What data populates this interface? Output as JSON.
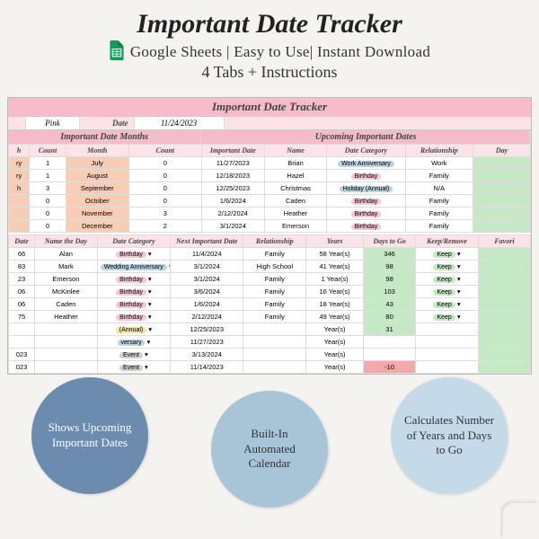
{
  "header": {
    "title": "Important Date Tracker",
    "subtitle1": "Google Sheets | Easy to Use| Instant Download",
    "subtitle2": "4 Tabs + Instructions"
  },
  "sheet": {
    "title": "Important Date Tracker",
    "theme_label": "Pink",
    "date_label": "Date",
    "date_value": "11/24/2023"
  },
  "section1": {
    "title": "Important Date Months",
    "columns": [
      "h",
      "Count",
      "Month",
      "Count"
    ],
    "rows": [
      [
        "ry",
        "1",
        "July",
        "0"
      ],
      [
        "ry",
        "1",
        "August",
        "0"
      ],
      [
        "h",
        "3",
        "September",
        "0"
      ],
      [
        "",
        "0",
        "October",
        "0"
      ],
      [
        "",
        "0",
        "November",
        "3"
      ],
      [
        "",
        "0",
        "December",
        "2"
      ]
    ]
  },
  "section2": {
    "title": "Upcoming Important Dates",
    "columns": [
      "Important Date",
      "Name",
      "Date Category",
      "Relationship",
      "Day"
    ],
    "rows": [
      [
        "11/27/2023",
        "Brian",
        "Work Anniversary",
        "Work",
        ""
      ],
      [
        "12/18/2023",
        "Hazel",
        "Birthday",
        "Family",
        ""
      ],
      [
        "12/25/2023",
        "Christmas",
        "Holiday (Annual)",
        "N/A",
        ""
      ],
      [
        "1/6/2024",
        "Caden",
        "Birthday",
        "Family",
        ""
      ],
      [
        "2/12/2024",
        "Heather",
        "Birthday",
        "Family",
        ""
      ],
      [
        "3/1/2024",
        "Emerson",
        "Birthday",
        "Family",
        ""
      ]
    ],
    "category_colors": [
      "#b8d4e3",
      "#f9c5d0",
      "#b8d4e3",
      "#f9c5d0",
      "#f9c5d0",
      "#f9c5d0"
    ]
  },
  "section3": {
    "columns": [
      "Date",
      "Name the Day",
      "Date Category",
      "Next Important Date",
      "Relationship",
      "Years",
      "Days to Go",
      "Keep/Remove",
      "Favori"
    ],
    "rows": [
      [
        "66",
        "Alan",
        "Birthday",
        "11/4/2024",
        "Family",
        "58 Year(s)",
        "346",
        "Keep",
        ""
      ],
      [
        "83",
        "Mark",
        "Wedding Anniversary",
        "3/1/2024",
        "High School",
        "41 Year(s)",
        "98",
        "Keep",
        ""
      ],
      [
        "23",
        "Emerson",
        "Birthday",
        "3/1/2024",
        "Family",
        "1 Year(s)",
        "98",
        "Keep",
        ""
      ],
      [
        "06",
        "McKinlee",
        "Birthday",
        "3/6/2024",
        "Family",
        "16 Year(s)",
        "103",
        "Keep",
        ""
      ],
      [
        "06",
        "Caden",
        "Birthday",
        "1/6/2024",
        "Family",
        "18 Year(s)",
        "43",
        "Keep",
        ""
      ],
      [
        "75",
        "Heather",
        "Birthday",
        "2/12/2024",
        "Family",
        "49 Year(s)",
        "80",
        "Keep",
        ""
      ],
      [
        "",
        "",
        "(Annual)",
        "12/25/2023",
        "",
        "Year(s)",
        "31",
        "",
        ""
      ],
      [
        "",
        "",
        "versary",
        "11/27/2023",
        "",
        "Year(s)",
        "",
        "",
        ""
      ],
      [
        "023",
        "",
        "Event",
        "3/13/2024",
        "",
        "Year(s)",
        "",
        "",
        ""
      ],
      [
        "023",
        "",
        "Event",
        "11/14/2023",
        "",
        "Year(s)",
        "-10",
        "",
        ""
      ]
    ],
    "category_colors": [
      "#f9c5d0",
      "#b8d4e3",
      "#f9c5d0",
      "#f9c5d0",
      "#f9c5d0",
      "#f9c5d0",
      "#f5e5a0",
      "#b8d4e3",
      "#d0d0d0",
      "#d0d0d0"
    ],
    "days_colors": [
      "#c5e8c5",
      "#c5e8c5",
      "#c5e8c5",
      "#c5e8c5",
      "#c5e8c5",
      "#c5e8c5",
      "#c5e8c5",
      "#fff",
      "#fff",
      "#f4a8a8"
    ]
  },
  "bubbles": {
    "b1": "Shows Upcoming Important Dates",
    "b2": "Built-In Automated Calendar",
    "b3": "Calculates Number of Years and Days to Go"
  },
  "colors": {
    "bg": "#f5f3f0",
    "header_pink": "#f8bcc8",
    "subhead_pink": "#fce3e8",
    "bubble1": "#6b8caf",
    "bubble2": "#a8c5d8",
    "bubble3": "#c5dae8"
  }
}
